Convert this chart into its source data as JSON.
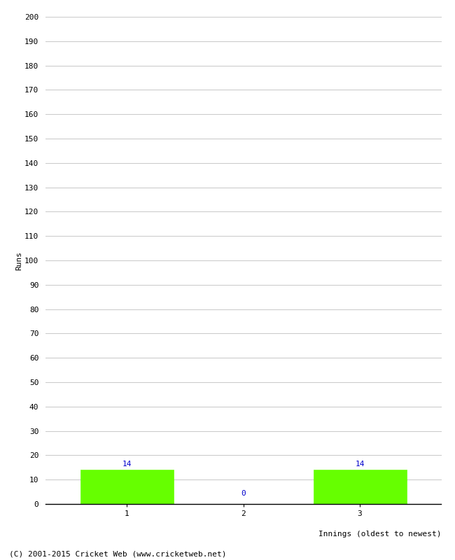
{
  "categories": [
    1,
    2,
    3
  ],
  "values": [
    14,
    0,
    14
  ],
  "bar_color": "#66ff00",
  "bar_edge_color": "#66ff00",
  "ylabel": "Runs",
  "xlabel": "Innings (oldest to newest)",
  "ylim": [
    0,
    200
  ],
  "ytick_step": 10,
  "background_color": "#ffffff",
  "grid_color": "#cccccc",
  "label_color": "#0000cc",
  "footer_text": "(C) 2001-2015 Cricket Web (www.cricketweb.net)",
  "bar_width": 0.8
}
